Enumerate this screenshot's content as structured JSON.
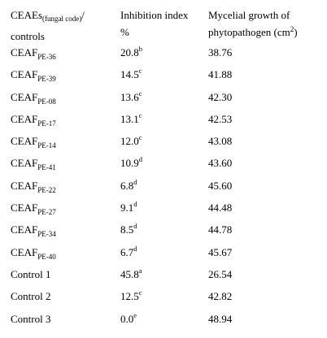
{
  "header": {
    "col1_main": "CEAEs",
    "col1_sub": "(fungal code)",
    "col1_slash": "/",
    "col1_line2": "controls",
    "col2_line1": "Inhibition index",
    "col2_line2": "%",
    "col3_line1": "Mycelial growth of",
    "col3_line2_pre": "phytopathogen (cm",
    "col3_sup": "2",
    "col3_line2_post": ")"
  },
  "rows": [
    {
      "name_main": "CEAF",
      "name_sub": "PE-36",
      "index": "20.8",
      "letter": "b",
      "growth": "38.76"
    },
    {
      "name_main": "CEAF",
      "name_sub": "PE-39",
      "index": "14.5",
      "letter": "c",
      "growth": "41.88"
    },
    {
      "name_main": "CEAF",
      "name_sub": "PE-08",
      "index": "13.6",
      "letter": "c",
      "growth": "42.30"
    },
    {
      "name_main": "CEAF",
      "name_sub": "PE-17",
      "index": "13.1",
      "letter": "c",
      "growth": "42.53"
    },
    {
      "name_main": "CEAF",
      "name_sub": "PE-14",
      "index": "12.0",
      "letter": "c",
      "growth": "43.08"
    },
    {
      "name_main": "CEAF",
      "name_sub": "PE-41",
      "index": "10.9",
      "letter": "d",
      "growth": "43.60"
    },
    {
      "name_main": "CEAF",
      "name_sub": "PE-22",
      "index": "6.8",
      "letter": "d",
      "growth": "45.60"
    },
    {
      "name_main": "CEAF",
      "name_sub": "PE-27",
      "index": "9.1",
      "letter": "d",
      "growth": "44.48"
    },
    {
      "name_main": "CEAF",
      "name_sub": "PE-34",
      "index": "8.5",
      "letter": "d",
      "growth": "44.78"
    },
    {
      "name_main": "CEAF",
      "name_sub": "PE-40",
      "index": "6.7",
      "letter": "d",
      "growth": "45.67"
    },
    {
      "name_main": "Control 1",
      "name_sub": "",
      "index": "45.8",
      "letter": "a",
      "growth": "26.54"
    },
    {
      "name_main": "Control 2",
      "name_sub": "",
      "index": "12.5",
      "letter": "c",
      "growth": "42.82"
    },
    {
      "name_main": "Control 3",
      "name_sub": "",
      "index": "0.0",
      "letter": "e",
      "growth": "48.94"
    }
  ]
}
